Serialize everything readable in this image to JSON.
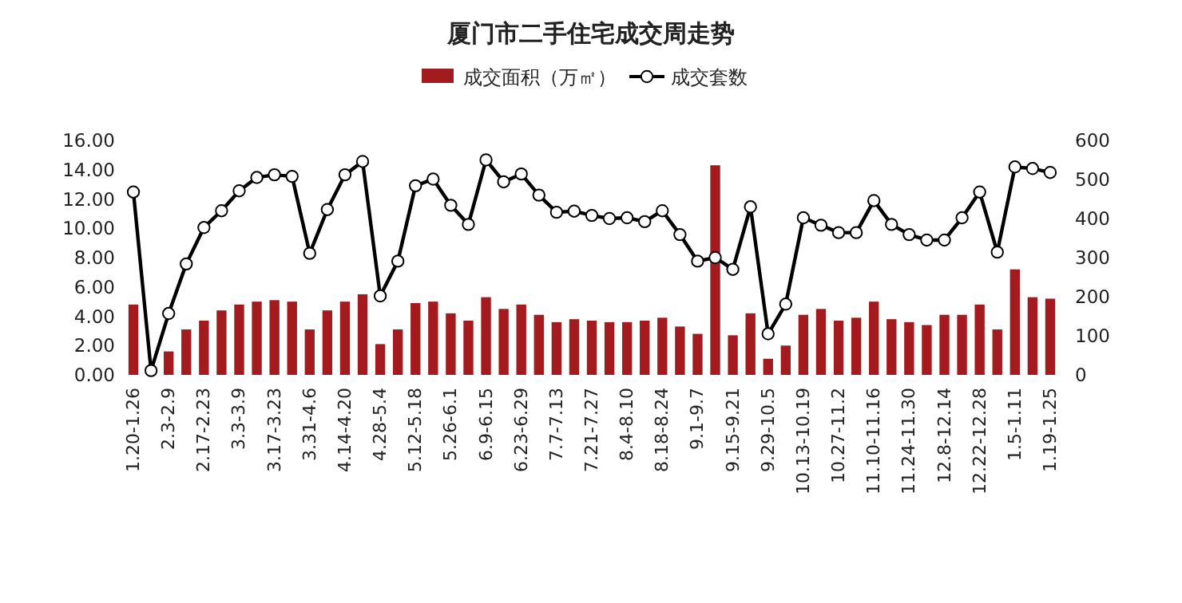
{
  "chart_data": {
    "type": "bar",
    "title": "厦门市二手住宅成交周走势",
    "categories": [
      "1.20-1.26",
      null,
      "2.3-2.9",
      null,
      "2.17-2.23",
      null,
      "3.3-3.9",
      null,
      "3.17-3.23",
      null,
      "3.31-4.6",
      null,
      "4.14-4.20",
      null,
      "4.28-5.4",
      null,
      "5.12-5.18",
      null,
      "5.26-6.1",
      null,
      "6.9-6.15",
      null,
      "6.23-6.29",
      null,
      "7.7-7.13",
      null,
      "7.21-7.27",
      null,
      "8.4-8.10",
      null,
      "8.18-8.24",
      null,
      "9.1-9.7",
      null,
      "9.15-9.21",
      null,
      "9.29-10.5",
      null,
      "10.13-10.19",
      null,
      "10.27-11.2",
      null,
      "11.10-11.16",
      null,
      "11.24-11.30",
      null,
      "12.8-12.14",
      null,
      "12.22-12.28",
      null,
      "1.5-1.11",
      null,
      "1.19-1.25"
    ],
    "series": [
      {
        "name": "成交面积（万㎡）",
        "color": "#a31b1f",
        "values": [
          4.8,
          0,
          1.6,
          3.1,
          3.7,
          4.4,
          4.8,
          5.0,
          5.1,
          5.0,
          3.1,
          4.4,
          5.0,
          5.5,
          2.1,
          3.1,
          4.9,
          5.0,
          4.2,
          3.7,
          5.3,
          4.5,
          4.8,
          4.1,
          3.6,
          3.8,
          3.7,
          3.6,
          3.6,
          3.7,
          3.9,
          3.3,
          2.8,
          14.3,
          2.7,
          4.2,
          1.1,
          2.0,
          4.1,
          4.5,
          3.7,
          3.9,
          5.0,
          3.8,
          3.6,
          3.4,
          4.1,
          4.1,
          4.8,
          3.1,
          7.2,
          5.3,
          5.2
        ]
      },
      {
        "name": "成交套数",
        "type": "line",
        "axis": "y2",
        "color": "#000000",
        "marker": "circle",
        "values": [
          468,
          11,
          157,
          284,
          377,
          420,
          471,
          505,
          512,
          508,
          311,
          423,
          512,
          546,
          202,
          291,
          484,
          501,
          434,
          385,
          550,
          494,
          514,
          460,
          416,
          419,
          408,
          400,
          402,
          392,
          420,
          359,
          291,
          300,
          270,
          430,
          105,
          181,
          402,
          383,
          364,
          364,
          446,
          385,
          359,
          345,
          345,
          402,
          468,
          314,
          532,
          528,
          518
        ]
      }
    ],
    "ylim": [
      0,
      16
    ],
    "yticks": [
      {
        "value": 0,
        "label": "0.00"
      },
      {
        "value": 2,
        "label": "2.00"
      },
      {
        "value": 4,
        "label": "4.00"
      },
      {
        "value": 6,
        "label": "6.00"
      },
      {
        "value": 8,
        "label": "8.00"
      },
      {
        "value": 10,
        "label": "10.00"
      },
      {
        "value": 12,
        "label": "12.00"
      },
      {
        "value": 14,
        "label": "14.00"
      },
      {
        "value": 16,
        "label": "16.00"
      }
    ],
    "y2lim": [
      0,
      600
    ],
    "y2ticks": [
      0,
      100,
      200,
      300,
      400,
      500,
      600
    ],
    "legend": "top"
  }
}
